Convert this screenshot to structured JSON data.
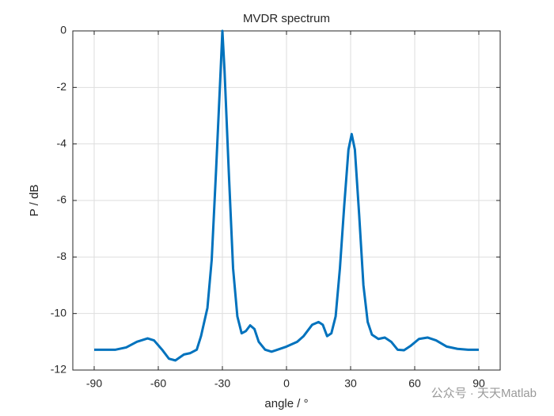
{
  "chart_data": {
    "type": "line",
    "title": "MVDR spectrum",
    "xlabel": "angle / °",
    "ylabel": "P / dB",
    "x": [
      -90,
      -80,
      -75,
      -70,
      -65,
      -62,
      -58,
      -55,
      -52,
      -48,
      -45,
      -42,
      -40,
      -37,
      -35,
      -33,
      -31,
      -30,
      -29,
      -27,
      -25,
      -23,
      -21,
      -19,
      -17,
      -15,
      -13,
      -10,
      -7,
      -5,
      0,
      5,
      8,
      12,
      15,
      17,
      19,
      21,
      23,
      25,
      27,
      29,
      30.5,
      32,
      34,
      36,
      38,
      40,
      43,
      46,
      49,
      52,
      55,
      58,
      62,
      66,
      70,
      75,
      80,
      85,
      90
    ],
    "series": [
      {
        "name": "P",
        "color": "#0072bd",
        "values": [
          -11.28,
          -11.28,
          -11.2,
          -11.0,
          -10.88,
          -10.95,
          -11.3,
          -11.6,
          -11.66,
          -11.45,
          -11.4,
          -11.28,
          -10.8,
          -9.8,
          -8.1,
          -5.0,
          -1.7,
          0,
          -1.4,
          -5.0,
          -8.4,
          -10.1,
          -10.7,
          -10.62,
          -10.42,
          -10.55,
          -11.0,
          -11.28,
          -11.35,
          -11.3,
          -11.17,
          -11.0,
          -10.8,
          -10.4,
          -10.3,
          -10.4,
          -10.8,
          -10.7,
          -10.1,
          -8.4,
          -6.2,
          -4.2,
          -3.65,
          -4.2,
          -6.5,
          -9.0,
          -10.3,
          -10.75,
          -10.9,
          -10.85,
          -11.0,
          -11.28,
          -11.3,
          -11.15,
          -10.9,
          -10.85,
          -10.95,
          -11.17,
          -11.25,
          -11.28,
          -11.28
        ]
      }
    ],
    "xlim": [
      -100,
      100
    ],
    "xticks": [
      -90,
      -60,
      -30,
      0,
      30,
      60,
      90
    ],
    "ylim": [
      -12,
      0
    ],
    "yticks": [
      -12,
      -10,
      -8,
      -6,
      -4,
      -2,
      0
    ],
    "grid": true,
    "watermark": "公众号 · 天天Matlab"
  }
}
